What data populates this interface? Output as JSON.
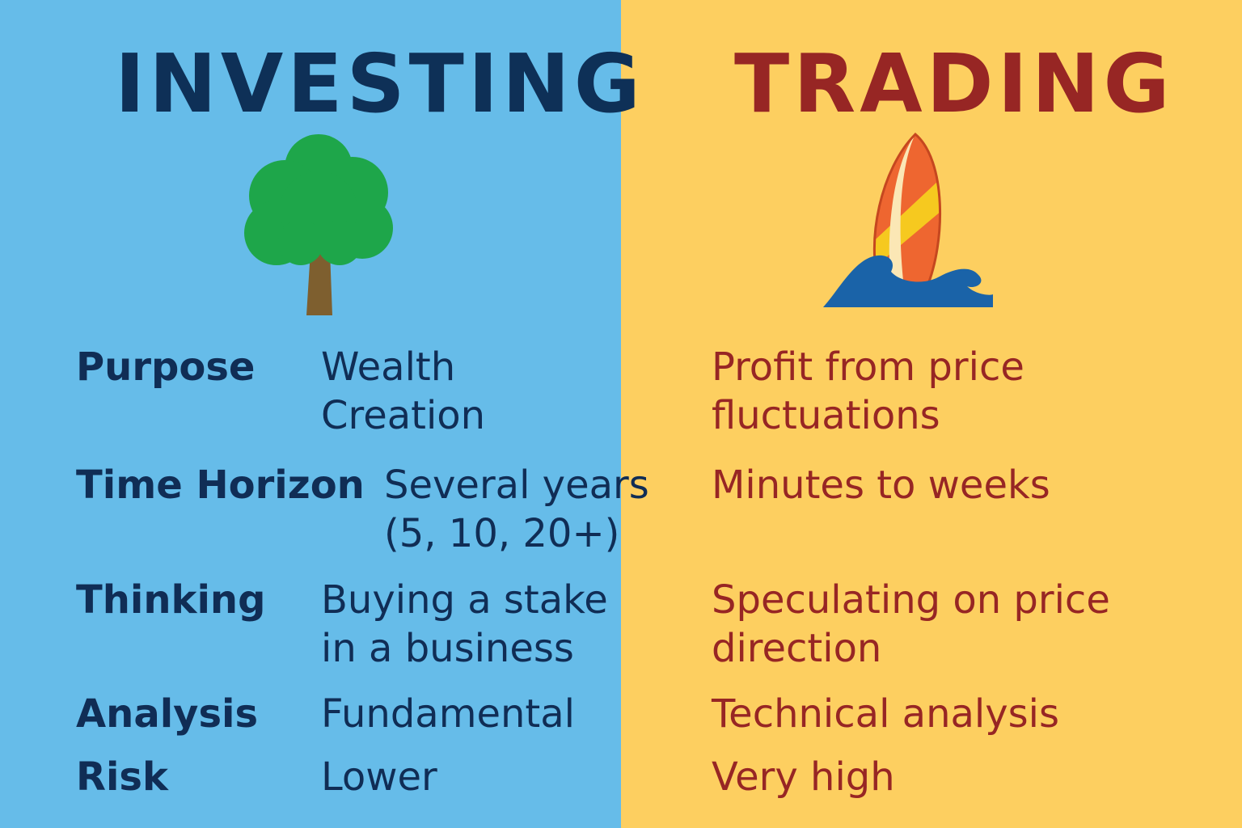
{
  "investing": {
    "title": "INVESTING",
    "icon": "tree-icon",
    "background": "#66bce9",
    "text_color": "#102d55"
  },
  "trading": {
    "title": "TRADING",
    "icon": "surfboard-wave-icon",
    "background": "#fdcf60",
    "text_color": "#972624"
  },
  "rows": [
    {
      "label": "Purpose",
      "investing": "Wealth Creation",
      "trading": "Profit from price fluctuations"
    },
    {
      "label": "Time Horizon",
      "investing": "Several years (5, 10, 20+)",
      "trading": "Minutes to weeks"
    },
    {
      "label": "Thinking",
      "investing": "Buying a stake in a business",
      "trading": "Speculating on price direction"
    },
    {
      "label": "Analysis",
      "investing": "Fundamental",
      "trading": "Technical analysis"
    },
    {
      "label": "Risk",
      "investing": "Lower",
      "trading": "Very high"
    }
  ]
}
